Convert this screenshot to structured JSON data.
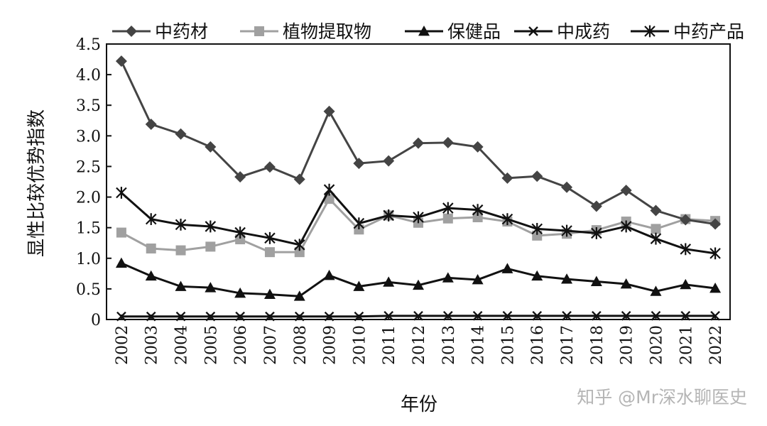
{
  "chart_data": {
    "type": "line",
    "xlabel": "年份",
    "ylabel": "显性比较优势指数",
    "ylim": [
      0,
      4.5
    ],
    "yticks": [
      "0",
      "0.5",
      "1.0",
      "1.5",
      "2.0",
      "2.5",
      "3.0",
      "3.5",
      "4.0",
      "4.5"
    ],
    "categories": [
      "2002",
      "2003",
      "2004",
      "2005",
      "2006",
      "2007",
      "2008",
      "2009",
      "2010",
      "2011",
      "2012",
      "2013",
      "2014",
      "2015",
      "2016",
      "2017",
      "2018",
      "2019",
      "2020",
      "2021",
      "2022"
    ],
    "grid": false,
    "legend_position": "top",
    "series": [
      {
        "name": "中药材",
        "marker": "diamond",
        "color": "#444444",
        "values": [
          4.22,
          3.19,
          3.03,
          2.82,
          2.33,
          2.49,
          2.29,
          3.4,
          2.55,
          2.59,
          2.88,
          2.89,
          2.82,
          2.31,
          2.34,
          2.16,
          1.85,
          2.11,
          1.78,
          1.63,
          1.56
        ]
      },
      {
        "name": "植物提取物",
        "marker": "square",
        "color": "#a0a0a0",
        "values": [
          1.42,
          1.16,
          1.13,
          1.19,
          1.31,
          1.1,
          1.1,
          1.97,
          1.47,
          1.7,
          1.58,
          1.65,
          1.67,
          1.6,
          1.37,
          1.4,
          1.46,
          1.6,
          1.48,
          1.64,
          1.61
        ]
      },
      {
        "name": "保健品",
        "marker": "triangle",
        "color": "#111111",
        "values": [
          0.92,
          0.71,
          0.54,
          0.52,
          0.43,
          0.41,
          0.38,
          0.72,
          0.54,
          0.61,
          0.56,
          0.68,
          0.65,
          0.83,
          0.71,
          0.66,
          0.62,
          0.58,
          0.46,
          0.57,
          0.51
        ]
      },
      {
        "name": "中成药",
        "marker": "x",
        "color": "#111111",
        "values": [
          0.05,
          0.05,
          0.05,
          0.05,
          0.05,
          0.05,
          0.05,
          0.05,
          0.05,
          0.06,
          0.06,
          0.06,
          0.06,
          0.06,
          0.06,
          0.06,
          0.06,
          0.06,
          0.06,
          0.06,
          0.06
        ]
      },
      {
        "name": "中药产品",
        "marker": "star",
        "color": "#111111",
        "values": [
          2.07,
          1.64,
          1.55,
          1.52,
          1.42,
          1.33,
          1.22,
          2.12,
          1.57,
          1.7,
          1.67,
          1.82,
          1.79,
          1.64,
          1.48,
          1.45,
          1.41,
          1.52,
          1.32,
          1.15,
          1.08
        ]
      }
    ]
  },
  "watermark": "知乎 @Mr深水聊医史"
}
